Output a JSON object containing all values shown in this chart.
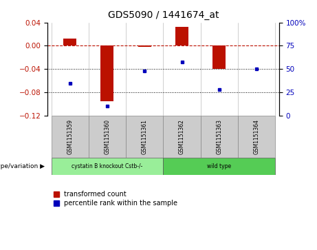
{
  "title": "GDS5090 / 1441674_at",
  "samples": [
    "GSM1151359",
    "GSM1151360",
    "GSM1151361",
    "GSM1151362",
    "GSM1151363",
    "GSM1151364"
  ],
  "red_values": [
    0.012,
    -0.095,
    -0.002,
    0.032,
    -0.04,
    0.001
  ],
  "blue_values_pct": [
    35,
    10,
    48,
    58,
    28,
    50
  ],
  "groups": [
    {
      "label": "cystatin B knockout Cstb-/-",
      "samples": [
        0,
        1,
        2
      ],
      "color": "#99ee99"
    },
    {
      "label": "wild type",
      "samples": [
        3,
        4,
        5
      ],
      "color": "#55cc55"
    }
  ],
  "ylim_left": [
    -0.12,
    0.04
  ],
  "ylim_right": [
    0,
    100
  ],
  "yticks_left": [
    0.04,
    0.0,
    -0.04,
    -0.08,
    -0.12
  ],
  "yticks_right": [
    100,
    75,
    50,
    25,
    0
  ],
  "hline_y": 0,
  "dotted_lines": [
    -0.04,
    -0.08
  ],
  "red_color": "#bb1100",
  "blue_color": "#0000bb",
  "bar_width": 0.35,
  "group_label": "genotype/variation",
  "legend_red": "transformed count",
  "legend_blue": "percentile rank within the sample",
  "bg_white": "#ffffff",
  "bg_gray": "#cccccc",
  "title_fontsize": 10,
  "tick_fontsize": 7.5,
  "label_fontsize": 6.5,
  "legend_fontsize": 7
}
